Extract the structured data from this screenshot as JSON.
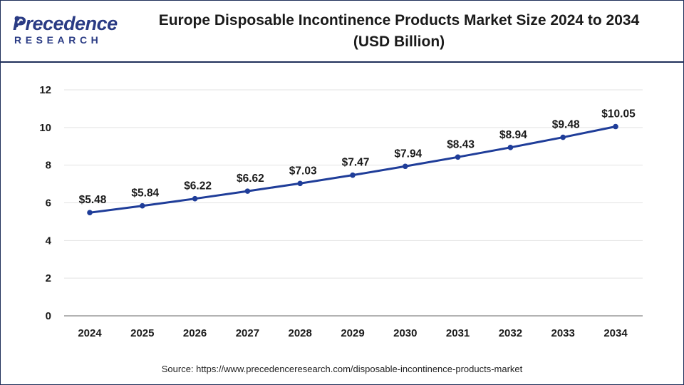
{
  "brand": {
    "name": "Precedence",
    "sub": "RESEARCH",
    "color": "#2a3b84"
  },
  "header": {
    "title_line1": "Europe Disposable Incontinence Products Market Size 2024 to 2034",
    "title_line2": "(USD Billion)"
  },
  "footer": {
    "source": "Source: https://www.precedenceresearch.com/disposable-incontinence-products-market"
  },
  "chart_data": {
    "type": "line",
    "title": "Europe Disposable Incontinence Products Market Size 2024 to 2034 (USD Billion)",
    "xlabel": "",
    "ylabel": "",
    "categories": [
      "2024",
      "2025",
      "2026",
      "2027",
      "2028",
      "2029",
      "2030",
      "2031",
      "2032",
      "2033",
      "2034"
    ],
    "series": [
      {
        "name": "Market Size (USD Billion)",
        "values": [
          5.48,
          5.84,
          6.22,
          6.62,
          7.03,
          7.47,
          7.94,
          8.43,
          8.94,
          9.48,
          10.05
        ],
        "labels": [
          "$5.48",
          "$5.84",
          "$6.22",
          "$6.62",
          "$7.03",
          "$7.47",
          "$7.94",
          "$8.43",
          "$8.94",
          "$9.48",
          "$10.05"
        ],
        "color": "#1f3d99"
      }
    ],
    "ylim": [
      0,
      12
    ],
    "yticks": [
      0,
      2,
      4,
      6,
      8,
      10,
      12
    ],
    "grid": true,
    "legend": "none"
  }
}
